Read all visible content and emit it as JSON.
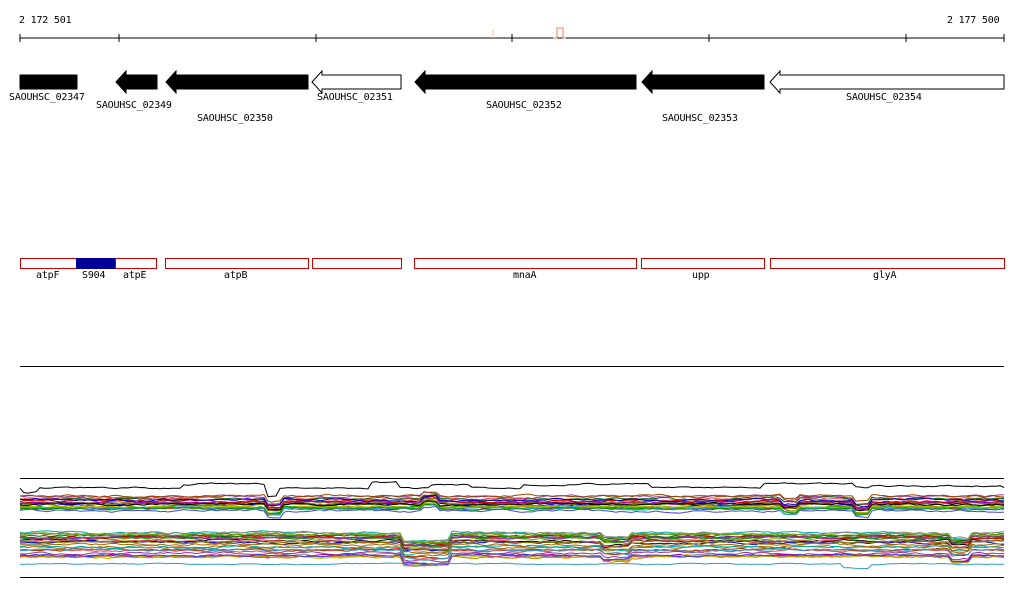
{
  "coords": {
    "start": "2 172 501",
    "end": "2 177 500"
  },
  "genes": [
    {
      "label": "SAOUHSC_02347",
      "strand": "plus",
      "filled": true
    },
    {
      "label": "SAOUHSC_02349",
      "strand": "minus",
      "filled": true
    },
    {
      "label": "SAOUHSC_02350",
      "strand": "minus",
      "filled": true
    },
    {
      "label": "SAOUHSC_02351",
      "strand": "minus",
      "filled": false
    },
    {
      "label": "SAOUHSC_02352",
      "strand": "minus",
      "filled": true
    },
    {
      "label": "SAOUHSC_02353",
      "strand": "minus",
      "filled": true
    },
    {
      "label": "SAOUHSC_02354",
      "strand": "minus",
      "filled": false
    }
  ],
  "features": [
    {
      "label": "atpF",
      "filled": false
    },
    {
      "label": "S904",
      "filled": true
    },
    {
      "label": "atpE",
      "filled": false
    },
    {
      "label": "atpB",
      "filled": false
    },
    {
      "label": "",
      "filled": false
    },
    {
      "label": "mnaA",
      "filled": false
    },
    {
      "label": "upp",
      "filled": false
    },
    {
      "label": "glyA",
      "filled": false
    }
  ],
  "colors": {
    "gene_fill": "#000000",
    "feature_outline": "#cc0000",
    "feature_fill": "#000099",
    "peak": "#e08060"
  }
}
